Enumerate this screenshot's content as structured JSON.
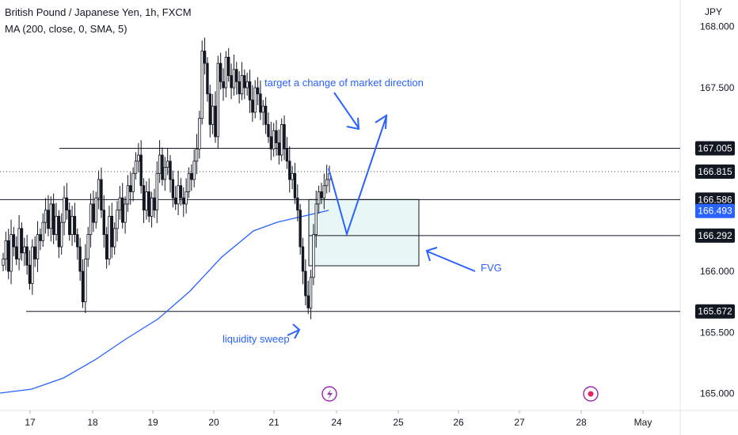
{
  "header": {
    "title": "British Pound / Japanese Yen, 1h, FXCM",
    "indicator": "MA (200, close, 0, SMA, 5)",
    "currency": "JPY"
  },
  "chart_data": {
    "type": "candlestick",
    "y_axis_labels": [
      "168.000",
      "167.500",
      "166.000",
      "165.500",
      "165.000"
    ],
    "x_axis_labels": [
      "17",
      "18",
      "19",
      "20",
      "21",
      "24",
      "25",
      "26",
      "27",
      "28",
      "May"
    ],
    "ylim": [
      164.88,
      168.08
    ],
    "price_lines": [
      {
        "value": 167.005,
        "label": "167.005",
        "style": "solid"
      },
      {
        "value": 166.815,
        "label": "166.815",
        "style": "dotted",
        "current": true
      },
      {
        "value": 166.586,
        "label": "166.586",
        "style": "solid"
      },
      {
        "value": 166.493,
        "label": "166.493",
        "style": "ma",
        "color": "#2962ff"
      },
      {
        "value": 166.292,
        "label": "166.292",
        "style": "solid"
      },
      {
        "value": 165.672,
        "label": "165.672",
        "style": "solid"
      }
    ],
    "fvg_zone": {
      "top": 166.586,
      "bottom": 166.045,
      "label": "FVG"
    },
    "ma": {
      "name": "MA (200, close, 0, SMA, 5)",
      "color": "#2962ff"
    },
    "annotations": {
      "target": "target a change of market direction",
      "sweep": "liquidity sweep",
      "fvg": "FVG"
    },
    "candle_closes": [
      166.1,
      166.25,
      166.0,
      166.3,
      166.2,
      166.1,
      166.35,
      166.15,
      166.2,
      166.05,
      165.9,
      166.2,
      166.1,
      166.3,
      166.25,
      166.4,
      166.5,
      166.35,
      166.55,
      166.3,
      166.45,
      166.2,
      166.4,
      166.6,
      166.5,
      166.3,
      166.45,
      166.3,
      166.2,
      166.0,
      165.75,
      166.1,
      166.3,
      166.55,
      166.4,
      166.6,
      166.75,
      166.5,
      166.3,
      166.1,
      166.45,
      166.2,
      166.35,
      166.5,
      166.6,
      166.4,
      166.55,
      166.7,
      166.65,
      166.8,
      166.9,
      166.95,
      166.7,
      166.5,
      166.65,
      166.45,
      166.6,
      166.5,
      166.8,
      166.95,
      166.75,
      166.85,
      166.9,
      166.75,
      166.6,
      166.55,
      166.7,
      166.6,
      166.55,
      166.65,
      166.8,
      166.75,
      166.9,
      167.0,
      167.25,
      167.8,
      167.7,
      167.45,
      167.2,
      167.35,
      167.1,
      167.7,
      167.55,
      167.5,
      167.75,
      167.6,
      167.5,
      167.65,
      167.55,
      167.45,
      167.6,
      167.5,
      167.55,
      167.4,
      167.3,
      167.5,
      167.45,
      167.3,
      167.35,
      167.2,
      167.1,
      167.0,
      167.15,
      167.05,
      166.95,
      167.2,
      167.0,
      166.9,
      166.75,
      166.8,
      166.6,
      166.5,
      166.2,
      166.0,
      165.8,
      165.7,
      165.95,
      166.3,
      166.55,
      166.65,
      166.6,
      166.7,
      166.75,
      166.8
    ]
  },
  "events": [
    "lightning-icon",
    "event-circle-icon"
  ]
}
